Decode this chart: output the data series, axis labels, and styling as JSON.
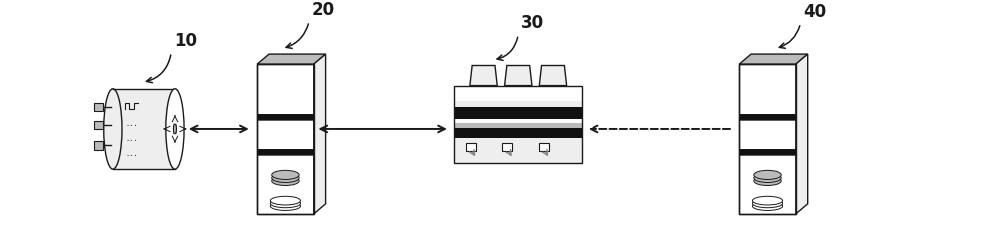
{
  "bg_color": "#ffffff",
  "label_10": "10",
  "label_20": "20",
  "label_30": "30",
  "label_40": "40",
  "label_fontsize": 12,
  "outline_color": "#1a1a1a",
  "fill_light": "#eeeeee",
  "fill_gray": "#bbbbbb",
  "fill_mid": "#888888",
  "fill_black": "#111111",
  "fill_white": "#ffffff",
  "fig_w": 10.0,
  "fig_h": 2.39,
  "xlim": [
    0,
    10
  ],
  "ylim": [
    0,
    2.39
  ]
}
